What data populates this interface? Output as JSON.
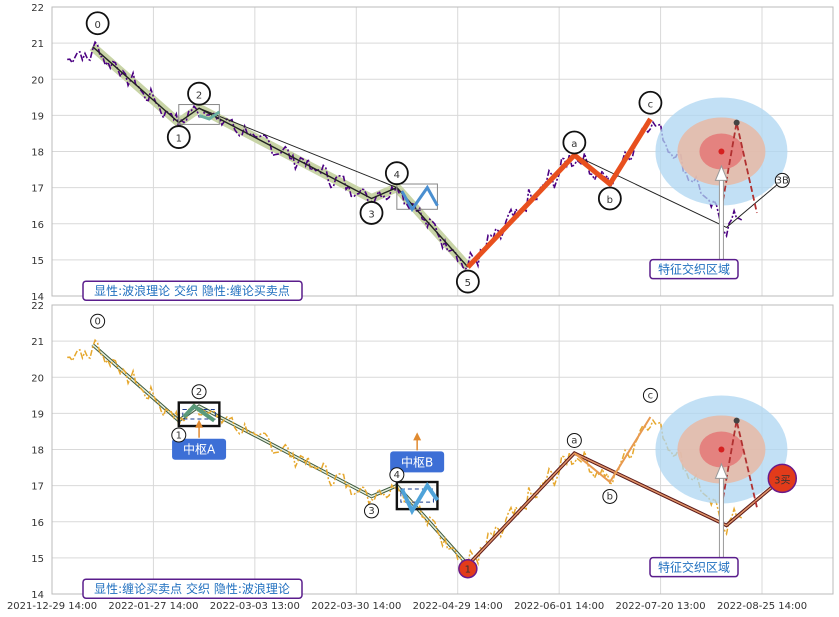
{
  "chart_data": [
    {
      "type": "line",
      "panel": "top",
      "ylim": [
        14,
        22
      ],
      "yticks": [
        14,
        15,
        16,
        17,
        18,
        19,
        20,
        21,
        22
      ],
      "caption": "显性:波浪理论 交织 隐性:缠论买卖点",
      "zone_label": "特征交织区域",
      "wave_labels": [
        "0",
        "1",
        "2",
        "3",
        "4",
        "5",
        "a",
        "b",
        "c",
        "3B"
      ],
      "wave_points": [
        {
          "x": 0,
          "y": 20.9
        },
        {
          "x": 17,
          "y": 18.8
        },
        {
          "x": 21,
          "y": 19.2
        },
        {
          "x": 55,
          "y": 16.7
        },
        {
          "x": 60,
          "y": 17.0
        },
        {
          "x": 74,
          "y": 14.8
        },
        {
          "x": 95,
          "y": 17.9
        },
        {
          "x": 102,
          "y": 17.1
        },
        {
          "x": 110,
          "y": 18.9
        },
        {
          "x": 125,
          "y": 15.9
        },
        {
          "x": 136,
          "y": 17.2
        }
      ],
      "price_color": "#4b0082",
      "colors": {
        "wave_abc": "#e8501e",
        "zone_inner": "#e57373",
        "zone_outer": "#aed6f1",
        "caption_border": "#5a1d8c"
      }
    },
    {
      "type": "line",
      "panel": "bottom",
      "ylim": [
        14,
        22
      ],
      "yticks": [
        14,
        15,
        16,
        17,
        18,
        19,
        20,
        21,
        22
      ],
      "caption": "显性:缠论买卖点 交织 隐性:波浪理论",
      "zone_label": "特征交织区域",
      "pivot_labels": [
        "中枢A",
        "中枢B"
      ],
      "buy_labels": [
        "1",
        "3买"
      ],
      "wave_labels": [
        "0",
        "1",
        "2",
        "3",
        "4",
        "a",
        "b",
        "c"
      ],
      "price_color": "#e6a82e",
      "colors": {
        "pivot_box": "#1a3d8f",
        "pivot_label_bg": "#3d6fd6",
        "buy_point": "#e23b1a"
      }
    }
  ],
  "x_axis": {
    "tick_labels": [
      "2021-12-29 14:00",
      "2022-01-27 14:00",
      "2022-03-03 13:00",
      "2022-03-30 14:00",
      "2022-04-29 14:00",
      "2022-06-01 14:00",
      "2022-07-20 13:00",
      "2022-08-25 14:00"
    ],
    "range": [
      -8,
      146
    ]
  }
}
